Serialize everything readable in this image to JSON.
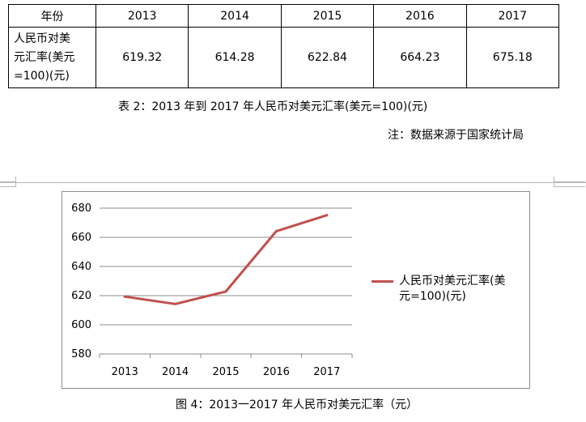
{
  "table": {
    "years": [
      "2013",
      "2014",
      "2015",
      "2016",
      "2017"
    ],
    "header_label": "年份",
    "row_label": "人民币对美元汇率(美元=100)(元)",
    "row_label_lines": [
      "人民币对美",
      "元汇率(美元",
      "=100)(元)"
    ],
    "values": [
      "619.32",
      "614.28",
      "622.84",
      "664.23",
      "675.18"
    ]
  },
  "table_caption": "表 2：2013 年到 2017 年人民币对美元汇率(美元=100)(元)",
  "source_note": "注：数据来源于国家统计局",
  "figure_caption": "图 4：2013一2017 年人民币对美元汇率（元）",
  "colors": {
    "series": "#c0504d",
    "grid": "#8c8c8c",
    "frame": "#8c8c8c"
  },
  "chart_data": {
    "type": "line",
    "x": [
      "2013",
      "2014",
      "2015",
      "2016",
      "2017"
    ],
    "series": [
      {
        "name": "人民币对美元汇率(美元=100)(元)",
        "name_lines": [
          "人民币对美元汇率(美",
          "元=100)(元)"
        ],
        "values": [
          619.32,
          614.28,
          622.84,
          664.23,
          675.18
        ]
      }
    ],
    "yticks": [
      580,
      600,
      620,
      640,
      660,
      680
    ],
    "ylim": [
      580,
      680
    ],
    "grid": true,
    "legend": "right"
  }
}
